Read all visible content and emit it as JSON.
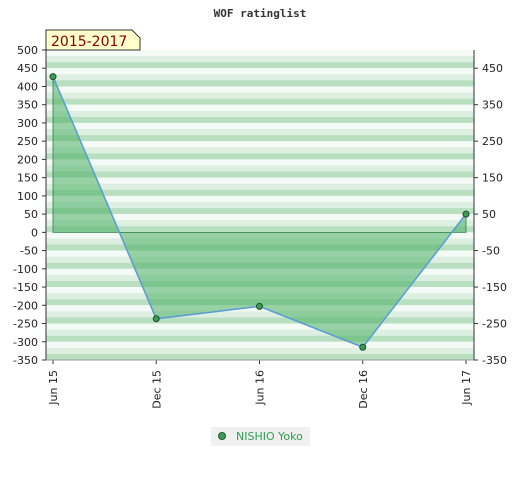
{
  "chart_data": {
    "type": "area",
    "title": "WOF ratinglist",
    "period_label": "2015-2017",
    "x": [
      "Jun 15",
      "Dec 15",
      "Jun 16",
      "Dec 16",
      "Jun 17"
    ],
    "series": [
      {
        "name": "NISHIO Yoko",
        "values": [
          427,
          -237,
          -203,
          -315,
          50
        ]
      }
    ],
    "y_left": {
      "ylim": [
        -350,
        500
      ],
      "ticks": [
        500,
        450,
        400,
        350,
        300,
        250,
        200,
        150,
        100,
        50,
        0,
        -50,
        -100,
        -150,
        -200,
        -250,
        -300,
        -350
      ]
    },
    "y_right": {
      "ticks": [
        450,
        350,
        250,
        150,
        50,
        -50,
        -150,
        -250,
        -350
      ]
    },
    "grid": "horizontal bands",
    "legend": "bottom-center",
    "colors": {
      "line": "#5b9bd5",
      "fill": "#4caf65",
      "marker": "#3d9a56",
      "band": "#a9d9b2",
      "legend_text": "#2e9e4f"
    }
  }
}
